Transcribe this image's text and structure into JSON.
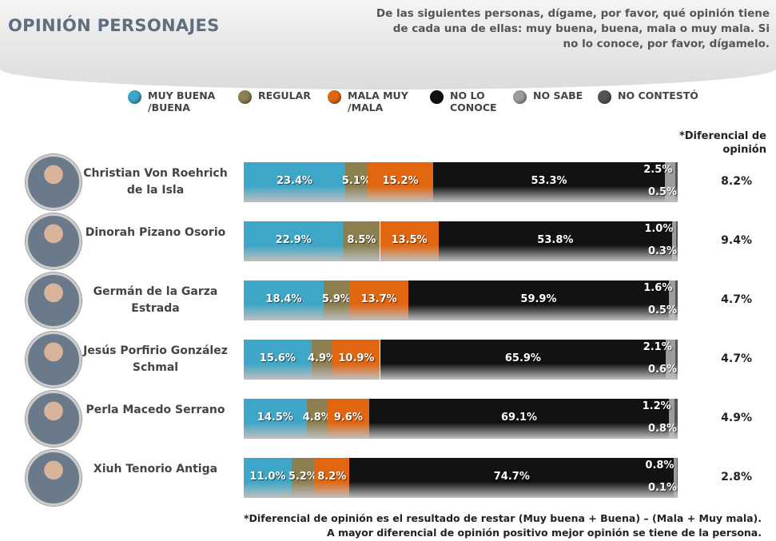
{
  "chart_data": {
    "type": "stacked-bar-horizontal",
    "title": "OPINIÓN PERSONAJES",
    "subtitle": [
      "De las siguientes personas, dígame, por favor, qué opinión tiene",
      "de cada una de ellas: muy buena, buena, mala o muy mala. Si",
      "no lo conoce, por favor, dígamelo."
    ],
    "categories": [
      "Christian Von Roehrich de la Isla",
      "Dinorah Pizano Osorio",
      "Germán de la Garza Estrada",
      "Jesús Porfirio González Schmal",
      "Perla Macedo Serrano",
      "Xiuh Tenorio Antiga"
    ],
    "xlim": [
      0,
      100
    ],
    "series": [
      {
        "name": "MUY BUENA /BUENA",
        "color": "#3ea6c6",
        "values": [
          23.4,
          22.9,
          18.4,
          15.6,
          14.5,
          11.0
        ],
        "value_labels": [
          "23.4%",
          "22.9%",
          "18.4%",
          "15.6%",
          "14.5%",
          "11.0%"
        ]
      },
      {
        "name": "REGULAR",
        "color": "#8c7f50",
        "values": [
          5.1,
          8.5,
          5.9,
          4.9,
          4.8,
          5.2
        ],
        "value_labels": [
          "5.1%",
          "8.5%",
          "5.9%",
          "4.9%",
          "4.8%",
          "5.2%"
        ]
      },
      {
        "name": "MALA MUY /MALA",
        "color": "#e2660f",
        "values": [
          15.2,
          13.5,
          13.7,
          10.9,
          9.6,
          8.2
        ],
        "value_labels": [
          "15.2%",
          "13.5%",
          "13.7%",
          "10.9%",
          "9.6%",
          "8.2%"
        ]
      },
      {
        "name": "NO LO CONOCE",
        "color": "#121212",
        "values": [
          53.3,
          53.8,
          59.9,
          65.9,
          69.1,
          74.7
        ],
        "value_labels": [
          "53.3%",
          "53.8%",
          "59.9%",
          "65.9%",
          "69.1%",
          "74.7%"
        ]
      },
      {
        "name": "NO SABE",
        "color": "#9c9c9c",
        "values": [
          2.5,
          1.0,
          1.6,
          2.1,
          1.2,
          0.8
        ],
        "value_labels": [
          "2.5%",
          "1.0%",
          "1.6%",
          "2.1%",
          "1.2%",
          "0.8%"
        ]
      },
      {
        "name": "NO CONTESTÓ",
        "color": "#555555",
        "values": [
          0.5,
          0.3,
          0.5,
          0.6,
          0.8,
          0.1
        ],
        "value_labels": [
          "0.5%",
          "0.3%",
          "0.5%",
          "0.6%",
          "0.8%",
          "0.1%"
        ]
      }
    ],
    "differential": {
      "name": "*Diferencial de opinión",
      "values": [
        8.2,
        9.4,
        4.7,
        4.7,
        4.9,
        2.8
      ],
      "value_labels": [
        "8.2%",
        "9.4%",
        "4.7%",
        "4.7%",
        "4.9%",
        "2.8%"
      ]
    },
    "footnote": [
      "*Diferencial de opinión es el resultado de restar (Muy buena + Buena) – (Mala + Muy mala).",
      "A mayor diferencial de opinión positivo mejor opinión se tiene de la persona."
    ]
  }
}
